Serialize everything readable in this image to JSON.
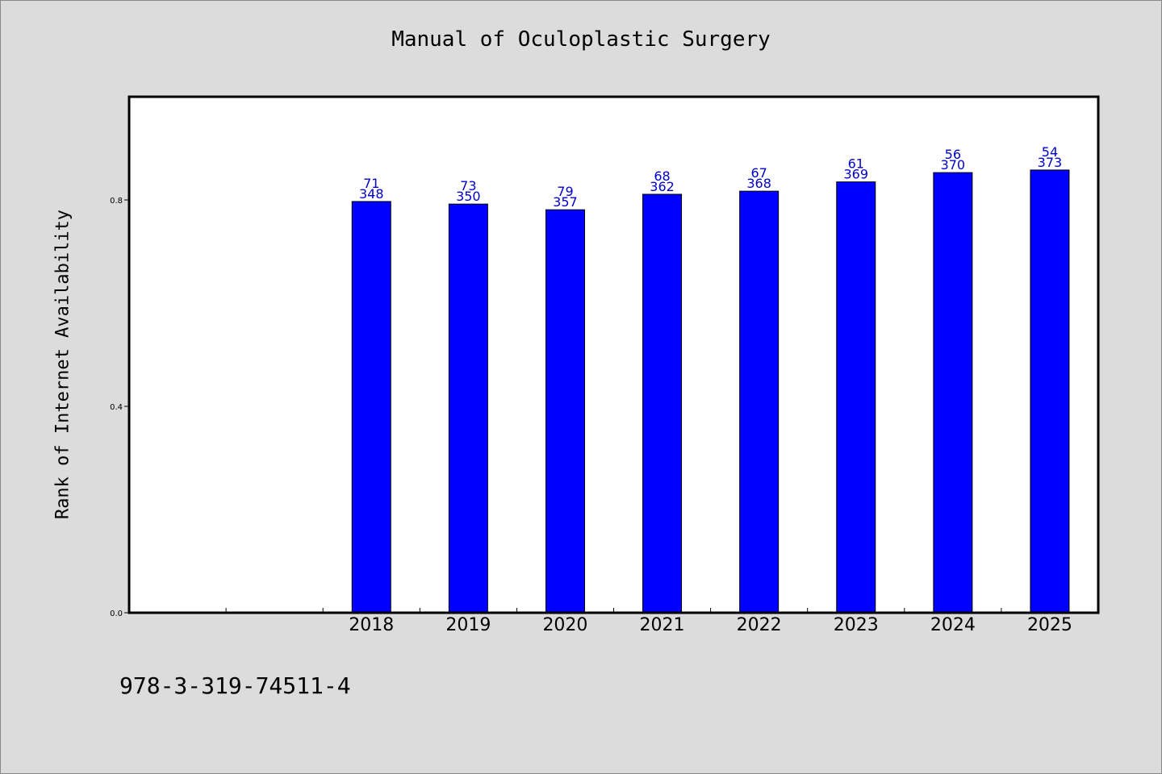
{
  "chart_data": {
    "type": "bar",
    "title": "Manual of Oculoplastic Surgery",
    "xlabel": "",
    "ylabel": "Rank of Internet Availability",
    "footer_text": "978-3-319-74511-4",
    "ylim": [
      0,
      1.0
    ],
    "yticks": [
      "0.0",
      "0.4",
      "0.8"
    ],
    "grid": false,
    "x_slots": 10,
    "first_category_slot": 2,
    "categories": [
      "2018",
      "2019",
      "2020",
      "2021",
      "2022",
      "2023",
      "2024",
      "2025"
    ],
    "values": [
      0.797,
      0.792,
      0.781,
      0.811,
      0.817,
      0.835,
      0.853,
      0.858
    ],
    "labels_top": [
      "71",
      "73",
      "79",
      "68",
      "67",
      "61",
      "56",
      "54"
    ],
    "labels_bottom": [
      "348",
      "350",
      "357",
      "362",
      "368",
      "369",
      "370",
      "373"
    ],
    "bar_color": "#0000ff",
    "label_color": "#0000cc"
  }
}
